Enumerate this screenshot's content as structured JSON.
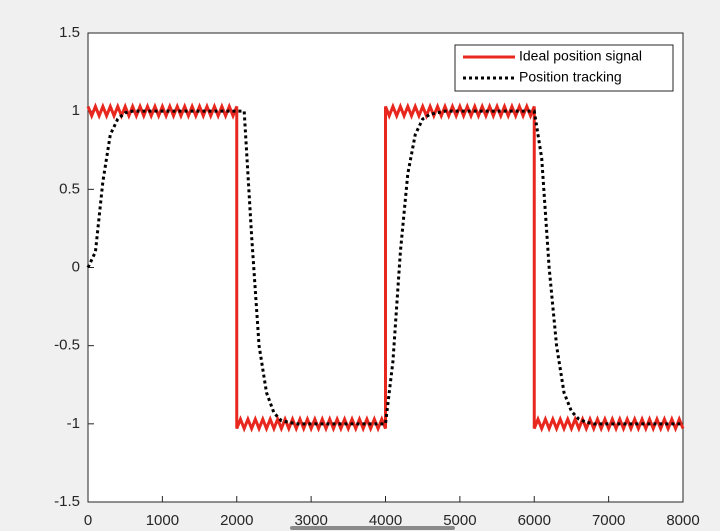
{
  "chart_data": {
    "type": "line",
    "xlim": [
      0,
      8000
    ],
    "xticks": [
      0,
      1000,
      2000,
      3000,
      4000,
      5000,
      6000,
      7000,
      8000
    ],
    "ylim": [
      -1.5,
      1.5
    ],
    "yticks": [
      -1.5,
      -1,
      -0.5,
      0,
      0.5,
      1,
      1.5
    ],
    "legend": "upper right",
    "series": [
      {
        "name": "Ideal position signal",
        "color": "#e8281e",
        "style": "solid",
        "x": [
          0,
          50,
          100,
          150,
          200,
          250,
          300,
          350,
          400,
          450,
          500,
          550,
          600,
          650,
          700,
          750,
          800,
          850,
          900,
          950,
          1000,
          1050,
          1100,
          1150,
          1200,
          1250,
          1300,
          1350,
          1400,
          1450,
          1500,
          1550,
          1600,
          1650,
          1700,
          1750,
          1800,
          1850,
          1900,
          1950,
          2000,
          2000,
          2050,
          2100,
          2150,
          2200,
          2250,
          2300,
          2350,
          2400,
          2450,
          2500,
          2550,
          2600,
          2650,
          2700,
          2750,
          2800,
          2850,
          2900,
          2950,
          3000,
          3050,
          3100,
          3150,
          3200,
          3250,
          3300,
          3350,
          3400,
          3450,
          3500,
          3550,
          3600,
          3650,
          3700,
          3750,
          3800,
          3850,
          3900,
          3950,
          4000,
          4000,
          4050,
          4100,
          4150,
          4200,
          4250,
          4300,
          4350,
          4400,
          4450,
          4500,
          4550,
          4600,
          4650,
          4700,
          4750,
          4800,
          4850,
          4900,
          4950,
          5000,
          5050,
          5100,
          5150,
          5200,
          5250,
          5300,
          5350,
          5400,
          5450,
          5500,
          5550,
          5600,
          5650,
          5700,
          5750,
          5800,
          5850,
          5900,
          5950,
          6000,
          6000,
          6050,
          6100,
          6150,
          6200,
          6250,
          6300,
          6350,
          6400,
          6450,
          6500,
          6550,
          6600,
          6650,
          6700,
          6750,
          6800,
          6850,
          6900,
          6950,
          7000,
          7050,
          7100,
          7150,
          7200,
          7250,
          7300,
          7350,
          7400,
          7450,
          7500,
          7550,
          7600,
          7650,
          7700,
          7750,
          7800,
          7850,
          7900,
          7950,
          8000
        ],
        "values": [
          1.03,
          0.97,
          1.03,
          0.97,
          1.03,
          0.97,
          1.03,
          0.97,
          1.03,
          0.97,
          1.03,
          0.97,
          1.03,
          0.97,
          1.03,
          0.97,
          1.03,
          0.97,
          1.03,
          0.97,
          1.03,
          0.97,
          1.03,
          0.97,
          1.03,
          0.97,
          1.03,
          0.97,
          1.03,
          0.97,
          1.03,
          0.97,
          1.03,
          0.97,
          1.03,
          0.97,
          1.03,
          0.97,
          1.03,
          0.97,
          1.03,
          -1.03,
          -0.97,
          -1.03,
          -0.97,
          -1.03,
          -0.97,
          -1.03,
          -0.97,
          -1.03,
          -0.97,
          -1.03,
          -0.97,
          -1.03,
          -0.97,
          -1.03,
          -0.97,
          -1.03,
          -0.97,
          -1.03,
          -0.97,
          -1.03,
          -0.97,
          -1.03,
          -0.97,
          -1.03,
          -0.97,
          -1.03,
          -0.97,
          -1.03,
          -0.97,
          -1.03,
          -0.97,
          -1.03,
          -0.97,
          -1.03,
          -0.97,
          -1.03,
          -0.97,
          -1.03,
          -0.97,
          -1.03,
          1.03,
          0.97,
          1.03,
          0.97,
          1.03,
          0.97,
          1.03,
          0.97,
          1.03,
          0.97,
          1.03,
          0.97,
          1.03,
          0.97,
          1.03,
          0.97,
          1.03,
          0.97,
          1.03,
          0.97,
          1.03,
          0.97,
          1.03,
          0.97,
          1.03,
          0.97,
          1.03,
          0.97,
          1.03,
          0.97,
          1.03,
          0.97,
          1.03,
          0.97,
          1.03,
          0.97,
          1.03,
          0.97,
          1.03,
          0.97,
          1.03,
          -1.03,
          -0.97,
          -1.03,
          -0.97,
          -1.03,
          -0.97,
          -1.03,
          -0.97,
          -1.03,
          -0.97,
          -1.03,
          -0.97,
          -1.03,
          -0.97,
          -1.03,
          -0.97,
          -1.03,
          -0.97,
          -1.03,
          -0.97,
          -1.03,
          -0.97,
          -1.03,
          -0.97,
          -1.03,
          -0.97,
          -1.03,
          -0.97,
          -1.03,
          -0.97,
          -1.03,
          -0.97,
          -1.03,
          -0.97,
          -1.03,
          -0.97,
          -1.03,
          -0.97,
          -1.03,
          -0.97,
          -1.03
        ]
      },
      {
        "name": "Position tracking",
        "color": "#000000",
        "style": "dotted",
        "x": [
          0,
          100,
          200,
          300,
          400,
          500,
          600,
          700,
          800,
          900,
          1000,
          1100,
          1200,
          1300,
          1400,
          1500,
          1600,
          1700,
          1800,
          1900,
          2000,
          2100,
          2200,
          2300,
          2400,
          2500,
          2600,
          2700,
          2800,
          2900,
          3000,
          3100,
          3200,
          3300,
          3400,
          3500,
          3600,
          3700,
          3800,
          3900,
          4000,
          4100,
          4200,
          4300,
          4400,
          4500,
          4600,
          4700,
          4800,
          4900,
          5000,
          5100,
          5200,
          5300,
          5400,
          5500,
          5600,
          5700,
          5800,
          5900,
          6000,
          6100,
          6200,
          6300,
          6400,
          6500,
          6600,
          6700,
          6800,
          6900,
          7000,
          7100,
          7200,
          7300,
          7400,
          7500,
          7600,
          7700,
          7800,
          7900,
          8000
        ],
        "values": [
          0,
          0.1,
          0.55,
          0.85,
          0.95,
          0.99,
          1,
          1,
          1,
          1,
          1,
          1,
          1,
          1,
          1,
          1,
          1,
          1,
          1,
          1,
          1,
          1,
          0.2,
          -0.5,
          -0.8,
          -0.93,
          -0.98,
          -0.99,
          -1,
          -1,
          -1,
          -1,
          -1,
          -1,
          -1,
          -1,
          -1,
          -1,
          -1,
          -1,
          -1,
          -0.6,
          0.1,
          0.6,
          0.85,
          0.95,
          0.98,
          0.99,
          1,
          1,
          1,
          1,
          1,
          1,
          1,
          1,
          1,
          1,
          1,
          1,
          1,
          0.7,
          0,
          -0.5,
          -0.8,
          -0.92,
          -0.97,
          -0.99,
          -1,
          -1,
          -1,
          -1,
          -1,
          -1,
          -1,
          -1,
          -1,
          -1,
          -1,
          -1,
          -1
        ]
      }
    ]
  }
}
